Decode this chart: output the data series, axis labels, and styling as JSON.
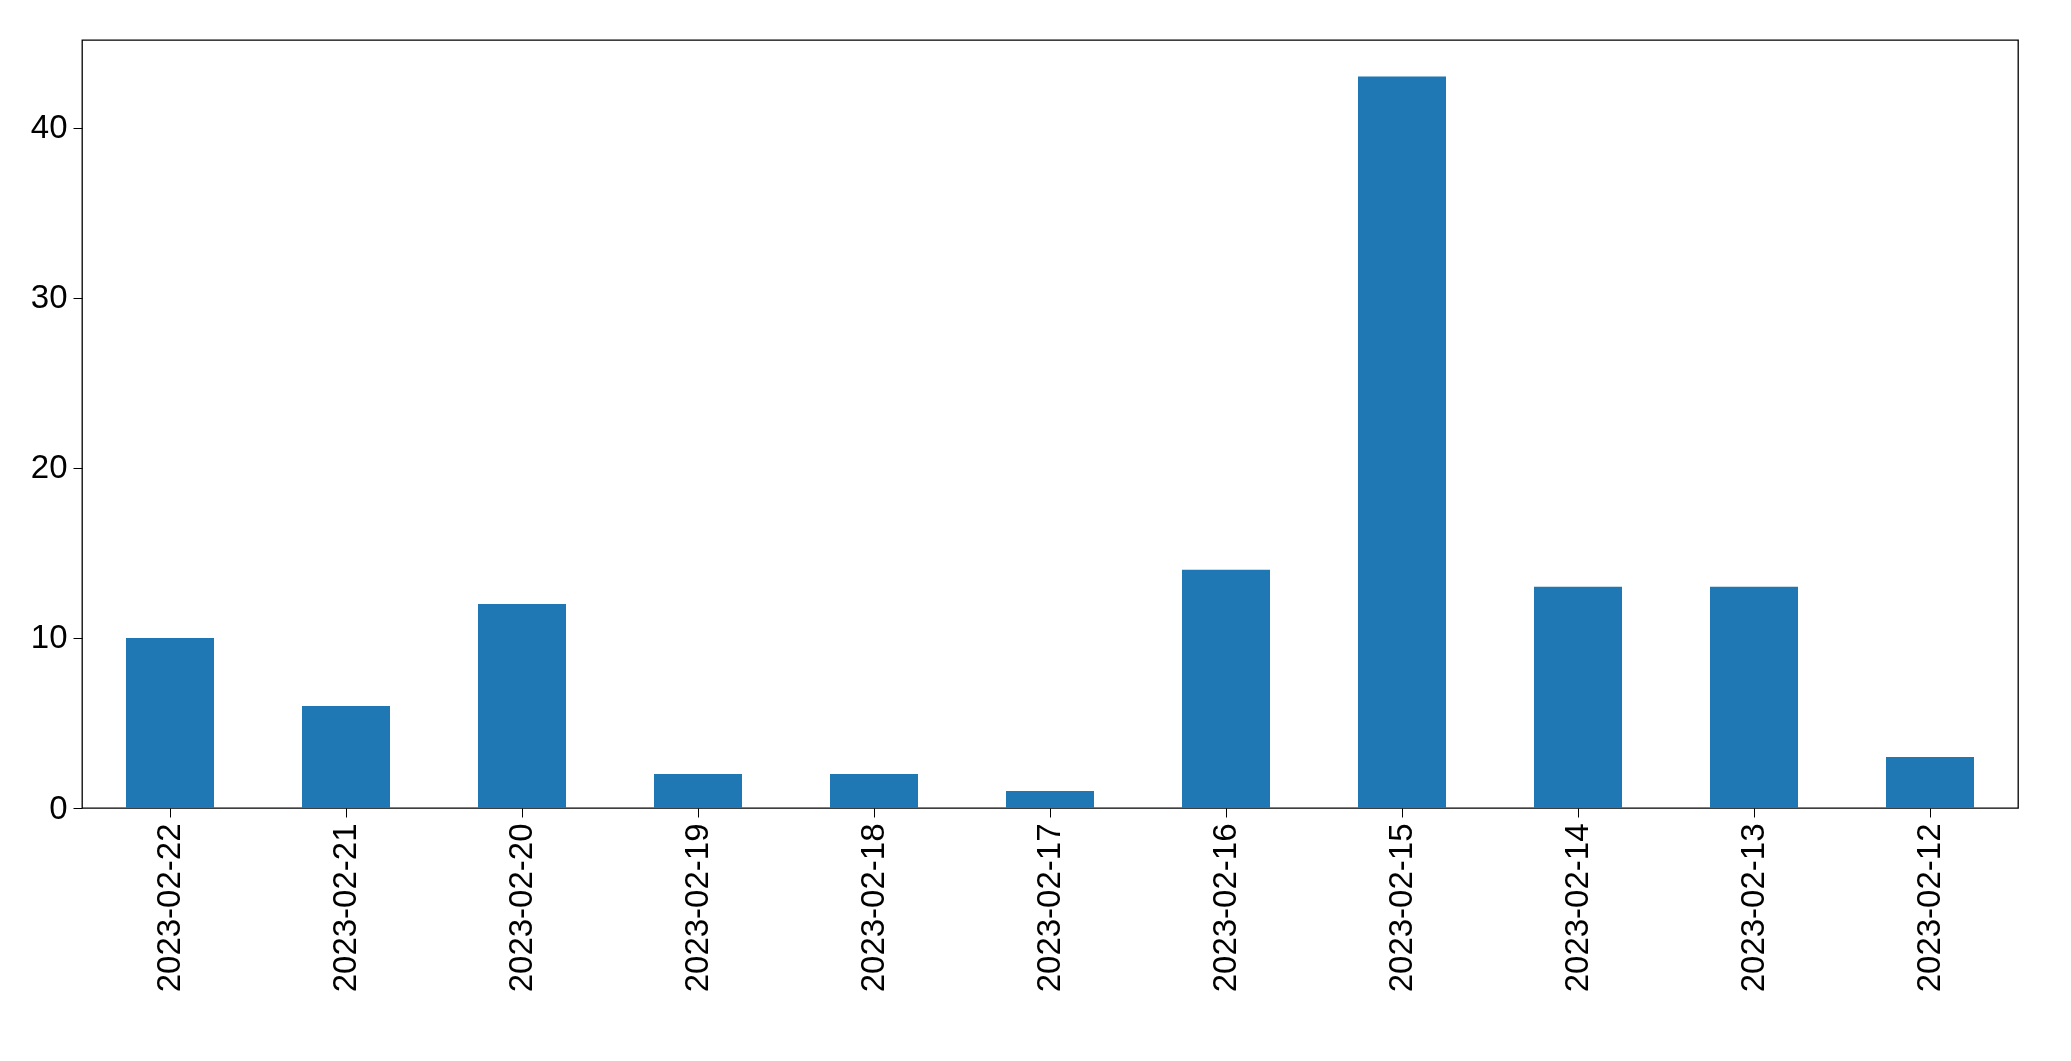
{
  "chart_data": {
    "type": "bar",
    "categories": [
      "2023-02-22",
      "2023-02-21",
      "2023-02-20",
      "2023-02-19",
      "2023-02-18",
      "2023-02-17",
      "2023-02-16",
      "2023-02-15",
      "2023-02-14",
      "2023-02-13",
      "2023-02-12"
    ],
    "values": [
      10,
      6,
      12,
      2,
      2,
      1,
      14,
      43,
      13,
      13,
      3
    ],
    "color": "#1f77b4",
    "ylim": [
      0,
      45.15
    ],
    "yticks": [
      0,
      10,
      20,
      30,
      40
    ],
    "grid": false
  }
}
